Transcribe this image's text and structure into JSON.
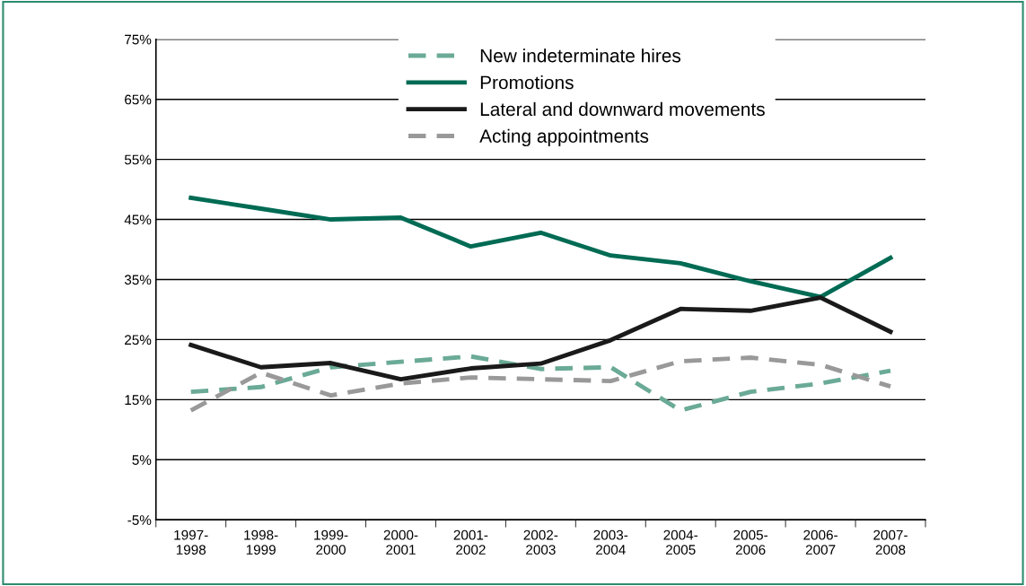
{
  "chart_data": {
    "type": "line",
    "categories": [
      "1997-\n1998",
      "1998-\n1999",
      "1999-\n2000",
      "2000-\n2001",
      "2001-\n2002",
      "2002-\n2003",
      "2003-\n2004",
      "2004-\n2005",
      "2005-\n2006",
      "2006-\n2007",
      "2007-\n2008"
    ],
    "series": [
      {
        "name": "New indeterminate hires",
        "color": "#6aaa96",
        "line_style": "dashed",
        "values": [
          16.3,
          17.1,
          20.4,
          21.3,
          22.2,
          20.1,
          20.4,
          13.2,
          16.3,
          17.7,
          19.8
        ]
      },
      {
        "name": "Promotions",
        "color": "#006b54",
        "line_style": "solid",
        "values": [
          48.6,
          46.8,
          45.0,
          45.3,
          40.5,
          42.8,
          39.0,
          37.7,
          34.7,
          32.1,
          38.6
        ]
      },
      {
        "name": "Lateral and downward movements",
        "color": "#1a1a1a",
        "line_style": "solid",
        "values": [
          24.1,
          20.4,
          21.1,
          18.4,
          20.2,
          21.0,
          24.9,
          30.1,
          29.8,
          32.0,
          26.3
        ]
      },
      {
        "name": "Acting appointments",
        "color": "#999999",
        "line_style": "dashed",
        "values": [
          13.2,
          19.5,
          15.7,
          17.7,
          18.7,
          18.4,
          18.1,
          21.4,
          22.0,
          20.8,
          17.2
        ]
      }
    ],
    "ylim": [
      -5,
      75
    ],
    "yticks": [
      {
        "value": -5,
        "label": "-5%"
      },
      {
        "value": 5,
        "label": "5%"
      },
      {
        "value": 15,
        "label": "15%"
      },
      {
        "value": 25,
        "label": "25%"
      },
      {
        "value": 35,
        "label": "35%"
      },
      {
        "value": 45,
        "label": "45%"
      },
      {
        "value": 55,
        "label": "55%"
      },
      {
        "value": 65,
        "label": "65%"
      },
      {
        "value": 75,
        "label": "75%"
      }
    ],
    "grid": "y",
    "legend": "top",
    "marker": "none"
  }
}
